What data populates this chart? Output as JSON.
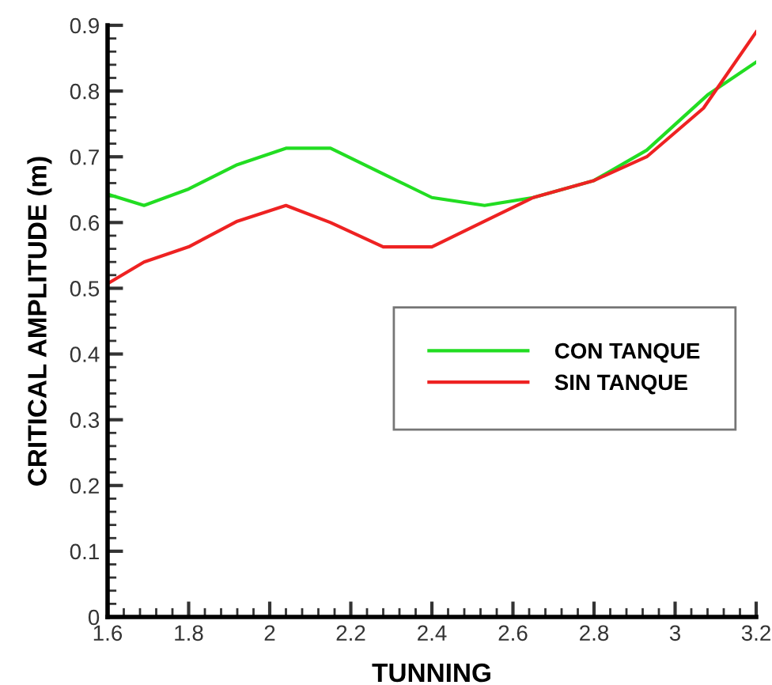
{
  "chart_data": {
    "type": "line",
    "xlabel": "TUNNING",
    "ylabel": "CRITICAL AMPLITUDE (m)",
    "x": [
      1.6,
      1.69,
      1.8,
      1.92,
      2.04,
      2.15,
      2.28,
      2.4,
      2.53,
      2.65,
      2.8,
      2.93,
      3.07,
      3.2
    ],
    "series": [
      {
        "name": "CON TANQUE",
        "color": "#22dd22",
        "x": [
          1.6,
          1.69,
          1.8,
          1.92,
          2.04,
          2.15,
          2.28,
          2.4,
          2.53,
          2.65,
          2.8,
          2.93,
          3.08,
          3.2
        ],
        "values": [
          0.643,
          0.626,
          0.651,
          0.688,
          0.713,
          0.713,
          0.674,
          0.638,
          0.626,
          0.638,
          0.664,
          0.71,
          0.794,
          0.844
        ]
      },
      {
        "name": "SIN TANQUE",
        "color": "#ee2222",
        "values": [
          0.507,
          0.54,
          0.563,
          0.602,
          0.626,
          0.6,
          0.563,
          0.563,
          0.602,
          0.638,
          0.664,
          0.7,
          0.774,
          0.89
        ]
      }
    ],
    "xlim": [
      1.6,
      3.2
    ],
    "ylim": [
      0,
      0.9
    ],
    "xticks": [
      1.6,
      1.8,
      2,
      2.2,
      2.4,
      2.6,
      2.8,
      3,
      3.2,
      {
        "value": 1.64,
        "label": null
      },
      {
        "value": 1.68,
        "label": null
      },
      {
        "value": 1.72,
        "label": null
      },
      {
        "value": 1.76,
        "label": null
      },
      {
        "value": 1.84,
        "label": null
      },
      {
        "value": 1.88,
        "label": null
      },
      {
        "value": 1.92,
        "label": null
      },
      {
        "value": 1.96,
        "label": null
      },
      {
        "value": 2.04,
        "label": null
      },
      {
        "value": 2.08,
        "label": null
      },
      {
        "value": 2.12,
        "label": null
      },
      {
        "value": 2.16,
        "label": null
      },
      {
        "value": 2.24,
        "label": null
      },
      {
        "value": 2.28,
        "label": null
      },
      {
        "value": 2.32,
        "label": null
      },
      {
        "value": 2.36,
        "label": null
      },
      {
        "value": 2.44,
        "label": null
      },
      {
        "value": 2.48,
        "label": null
      },
      {
        "value": 2.52,
        "label": null
      },
      {
        "value": 2.56,
        "label": null
      },
      {
        "value": 2.64,
        "label": null
      },
      {
        "value": 2.68,
        "label": null
      },
      {
        "value": 2.72,
        "label": null
      },
      {
        "value": 2.76,
        "label": null
      },
      {
        "value": 2.84,
        "label": null
      },
      {
        "value": 2.88,
        "label": null
      },
      {
        "value": 2.92,
        "label": null
      },
      {
        "value": 2.96,
        "label": null
      },
      {
        "value": 3.04,
        "label": null
      },
      {
        "value": 3.08,
        "label": null
      },
      {
        "value": 3.12,
        "label": null
      },
      {
        "value": 3.16,
        "label": null
      }
    ],
    "yticks": [
      0,
      0.1,
      0.2,
      0.3,
      0.4,
      0.5,
      0.6,
      0.7,
      0.8,
      0.9,
      {
        "value": 0.02,
        "label": null
      },
      {
        "value": 0.04,
        "label": null
      },
      {
        "value": 0.06,
        "label": null
      },
      {
        "value": 0.08,
        "label": null
      },
      {
        "value": 0.12,
        "label": null
      },
      {
        "value": 0.14,
        "label": null
      },
      {
        "value": 0.16,
        "label": null
      },
      {
        "value": 0.18,
        "label": null
      },
      {
        "value": 0.22,
        "label": null
      },
      {
        "value": 0.24,
        "label": null
      },
      {
        "value": 0.26,
        "label": null
      },
      {
        "value": 0.28,
        "label": null
      },
      {
        "value": 0.32,
        "label": null
      },
      {
        "value": 0.34,
        "label": null
      },
      {
        "value": 0.36,
        "label": null
      },
      {
        "value": 0.38,
        "label": null
      },
      {
        "value": 0.42,
        "label": null
      },
      {
        "value": 0.44,
        "label": null
      },
      {
        "value": 0.46,
        "label": null
      },
      {
        "value": 0.48,
        "label": null
      },
      {
        "value": 0.52,
        "label": null
      },
      {
        "value": 0.54,
        "label": null
      },
      {
        "value": 0.56,
        "label": null
      },
      {
        "value": 0.58,
        "label": null
      },
      {
        "value": 0.62,
        "label": null
      },
      {
        "value": 0.64,
        "label": null
      },
      {
        "value": 0.66,
        "label": null
      },
      {
        "value": 0.68,
        "label": null
      },
      {
        "value": 0.72,
        "label": null
      },
      {
        "value": 0.74,
        "label": null
      },
      {
        "value": 0.76,
        "label": null
      },
      {
        "value": 0.78,
        "label": null
      },
      {
        "value": 0.82,
        "label": null
      },
      {
        "value": 0.84,
        "label": null
      },
      {
        "value": 0.86,
        "label": null
      },
      {
        "value": 0.88,
        "label": null
      }
    ],
    "grid": false,
    "legend": "right",
    "marker": "none",
    "line_style": "solid"
  }
}
